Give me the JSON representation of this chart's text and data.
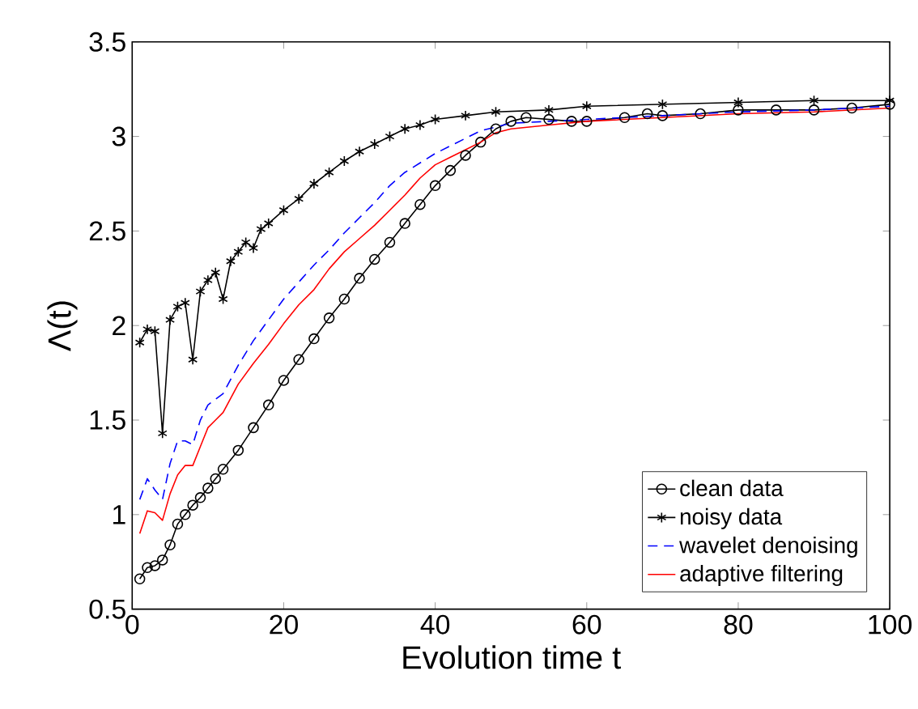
{
  "chart_data": {
    "type": "line",
    "xlabel": "Evolution time t",
    "ylabel": "Λ(t)",
    "xlim": [
      0,
      100
    ],
    "ylim": [
      0.5,
      3.5
    ],
    "xticks": [
      0,
      20,
      40,
      60,
      80,
      100
    ],
    "yticks": [
      0.5,
      1,
      1.5,
      2,
      2.5,
      3,
      3.5
    ],
    "legend": "bottom right",
    "grid": false,
    "series": [
      {
        "name": "clean data",
        "color": "#000000",
        "marker": "circle",
        "line_style": "solid",
        "x": [
          1,
          2,
          3,
          4,
          5,
          6,
          7,
          8,
          9,
          10,
          11,
          12,
          14,
          16,
          18,
          20,
          22,
          24,
          26,
          28,
          30,
          32,
          34,
          36,
          38,
          40,
          42,
          44,
          46,
          48,
          50,
          52,
          55,
          58,
          60,
          65,
          68,
          70,
          75,
          80,
          85,
          90,
          95,
          100
        ],
        "values": [
          0.66,
          0.72,
          0.73,
          0.76,
          0.84,
          0.95,
          1.0,
          1.05,
          1.09,
          1.14,
          1.19,
          1.24,
          1.34,
          1.46,
          1.58,
          1.71,
          1.82,
          1.93,
          2.04,
          2.14,
          2.25,
          2.35,
          2.44,
          2.54,
          2.64,
          2.74,
          2.82,
          2.9,
          2.97,
          3.04,
          3.08,
          3.1,
          3.09,
          3.08,
          3.08,
          3.1,
          3.12,
          3.11,
          3.12,
          3.14,
          3.14,
          3.14,
          3.15,
          3.17
        ]
      },
      {
        "name": "noisy data",
        "color": "#000000",
        "marker": "cross",
        "line_style": "solid",
        "x": [
          1,
          2,
          3,
          4,
          5,
          6,
          7,
          8,
          9,
          10,
          11,
          12,
          13,
          14,
          15,
          16,
          17,
          18,
          20,
          22,
          24,
          26,
          28,
          30,
          32,
          34,
          36,
          38,
          40,
          44,
          48,
          55,
          60,
          70,
          80,
          90,
          100
        ],
        "values": [
          1.91,
          1.98,
          1.97,
          1.43,
          2.03,
          2.1,
          2.12,
          1.82,
          2.18,
          2.24,
          2.28,
          2.14,
          2.34,
          2.39,
          2.44,
          2.41,
          2.51,
          2.54,
          2.61,
          2.67,
          2.75,
          2.81,
          2.87,
          2.92,
          2.96,
          3.0,
          3.04,
          3.06,
          3.09,
          3.11,
          3.13,
          3.14,
          3.16,
          3.17,
          3.18,
          3.19,
          3.19
        ]
      },
      {
        "name": "wavelet denoising",
        "color": "#0000ff",
        "marker": "none",
        "line_style": "dashed",
        "x": [
          1,
          2,
          3,
          4,
          5,
          6,
          7,
          8,
          9,
          10,
          12,
          14,
          16,
          18,
          20,
          22,
          24,
          26,
          28,
          30,
          32,
          34,
          36,
          38,
          40,
          42,
          44,
          46,
          50,
          55,
          60,
          70,
          80,
          90,
          100
        ],
        "values": [
          1.08,
          1.19,
          1.13,
          1.08,
          1.27,
          1.39,
          1.39,
          1.37,
          1.5,
          1.58,
          1.64,
          1.79,
          1.92,
          2.03,
          2.14,
          2.23,
          2.32,
          2.4,
          2.49,
          2.57,
          2.65,
          2.74,
          2.81,
          2.86,
          2.91,
          2.95,
          2.99,
          3.03,
          3.07,
          3.08,
          3.09,
          3.11,
          3.13,
          3.14,
          3.16
        ]
      },
      {
        "name": "adaptive filtering",
        "color": "#ff0000",
        "marker": "none",
        "line_style": "solid",
        "x": [
          1,
          2,
          3,
          4,
          5,
          6,
          7,
          8,
          9,
          10,
          11,
          12,
          14,
          16,
          18,
          20,
          22,
          24,
          26,
          28,
          30,
          32,
          34,
          36,
          38,
          40,
          42,
          44,
          46,
          48,
          50,
          55,
          60,
          70,
          80,
          90,
          100
        ],
        "values": [
          0.9,
          1.02,
          1.01,
          0.97,
          1.11,
          1.21,
          1.26,
          1.26,
          1.36,
          1.46,
          1.5,
          1.54,
          1.69,
          1.8,
          1.9,
          2.01,
          2.11,
          2.19,
          2.3,
          2.39,
          2.46,
          2.53,
          2.61,
          2.69,
          2.78,
          2.85,
          2.89,
          2.93,
          2.97,
          3.02,
          3.04,
          3.06,
          3.08,
          3.1,
          3.12,
          3.13,
          3.15
        ]
      }
    ]
  }
}
